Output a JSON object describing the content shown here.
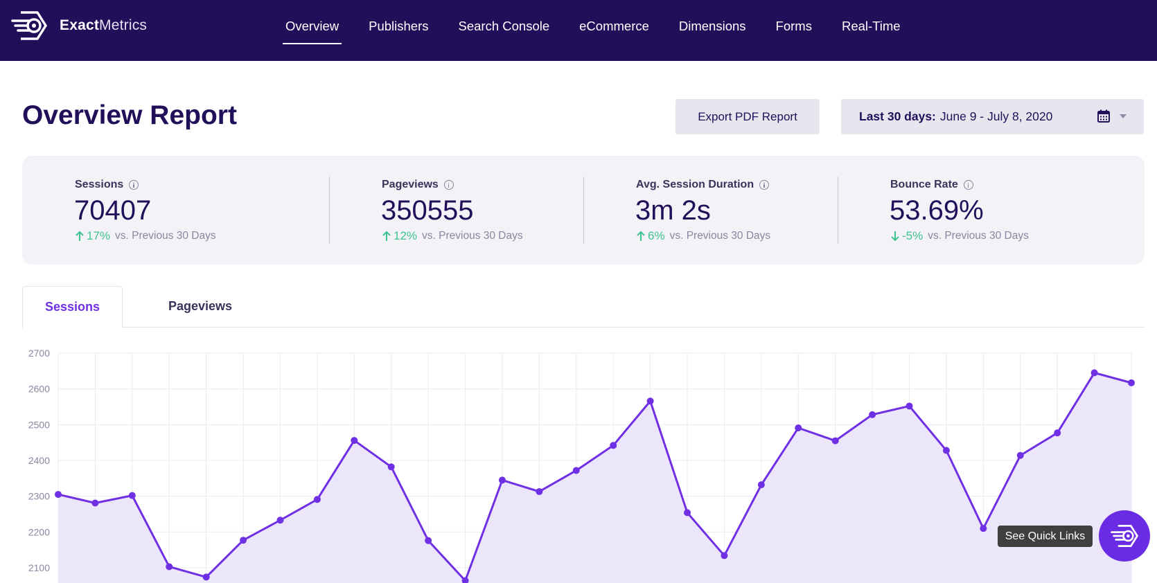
{
  "app": {
    "logo_bold": "Exact",
    "logo_regular": "Metrics"
  },
  "nav": {
    "items": [
      {
        "label": "Overview",
        "active": true
      },
      {
        "label": "Publishers",
        "active": false
      },
      {
        "label": "Search Console",
        "active": false
      },
      {
        "label": "eCommerce",
        "active": false
      },
      {
        "label": "Dimensions",
        "active": false
      },
      {
        "label": "Forms",
        "active": false
      },
      {
        "label": "Real-Time",
        "active": false
      }
    ]
  },
  "header": {
    "title": "Overview Report",
    "export_label": "Export PDF Report",
    "date_prefix": "Last 30 days:",
    "date_range": "June 9 - July 8, 2020",
    "calendar_icon": "calendar-icon",
    "caret_icon": "chevron-down-icon"
  },
  "stats": [
    {
      "label": "Sessions",
      "value": "70407",
      "change": "17%",
      "direction": "up",
      "compare": "vs. Previous 30 Days"
    },
    {
      "label": "Pageviews",
      "value": "350555",
      "change": "12%",
      "direction": "up",
      "compare": "vs. Previous 30 Days"
    },
    {
      "label": "Avg. Session Duration",
      "value": "3m 2s",
      "change": "6%",
      "direction": "up",
      "compare": "vs. Previous 30 Days"
    },
    {
      "label": "Bounce Rate",
      "value": "53.69%",
      "change": "-5%",
      "direction": "down",
      "compare": "vs. Previous 30 Days"
    }
  ],
  "tabs": [
    {
      "label": "Sessions",
      "active": true
    },
    {
      "label": "Pageviews",
      "active": false
    }
  ],
  "colors": {
    "navy": "#210f59",
    "accent": "#6f2fe4",
    "positive": "#3ec38e",
    "area_fill": "#ece6fb"
  },
  "quick_links": {
    "label": "See Quick Links",
    "icon": "exactmetrics-logo-icon"
  },
  "chart_data": {
    "type": "area",
    "series": [
      {
        "values": [
          2305,
          2281,
          2302,
          2103,
          2074,
          2177,
          2233,
          2291,
          2456,
          2382,
          2176,
          2064,
          2345,
          2313,
          2372,
          2442,
          2566,
          2254,
          2134,
          2332,
          2491,
          2455,
          2528,
          2552,
          2428,
          2210,
          2414,
          2477,
          2645,
          2617
        ]
      }
    ],
    "y_ticks": [
      2700,
      2600,
      2500,
      2400,
      2300,
      2200,
      2100
    ],
    "ylim": [
      2050,
      2700
    ],
    "grid": true,
    "xlabel": "",
    "ylabel": ""
  }
}
